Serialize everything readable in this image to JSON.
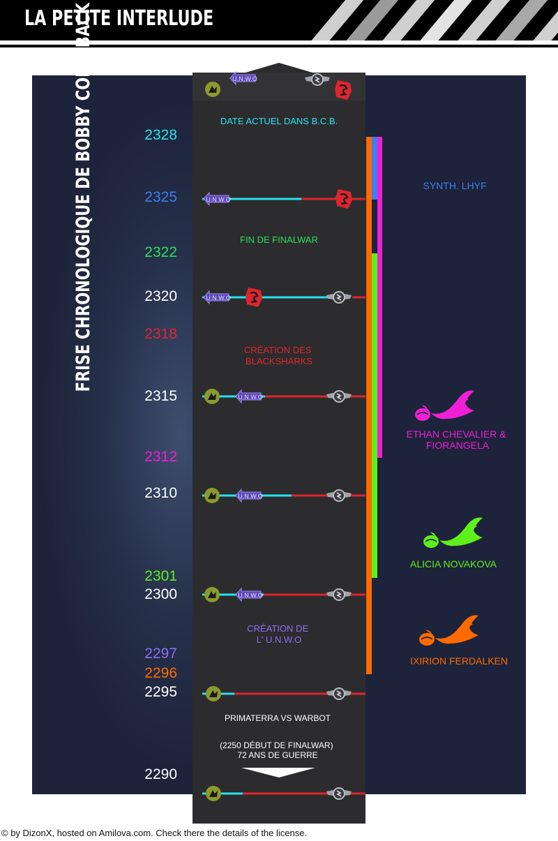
{
  "header": {
    "title": "LA PETITE INTERLUDE"
  },
  "vertical_title": "FRISE CHRONOLOGIQUE DE BOBBY COME BACK",
  "colors": {
    "cyan": "#22e5ef",
    "red": "#e0242e",
    "green": "#27e05a",
    "lime": "#5ef01a",
    "orange": "#ff6a00",
    "magenta": "#ef1fd6",
    "blue": "#3d7ef0",
    "purple": "#8b6ff5",
    "olive": "#8b9a2d",
    "grey": "#b9bcc3",
    "panel": "#23294a",
    "spine": "#2c2c2e"
  },
  "years": [
    {
      "label": "2328",
      "color": "#22e5ef"
    },
    {
      "label": "2325",
      "color": "#3d7ef0"
    },
    {
      "label": "2322",
      "color": "#27e05a"
    },
    {
      "label": "2320",
      "color": "#ffffff"
    },
    {
      "label": "2318",
      "color": "#e0242e"
    },
    {
      "label": "2315",
      "color": "#ffffff"
    },
    {
      "label": "2312",
      "color": "#ef1fd6"
    },
    {
      "label": "2310",
      "color": "#ffffff"
    },
    {
      "label": "2301",
      "color": "#5ef01a"
    },
    {
      "label": "2300",
      "color": "#ffffff"
    },
    {
      "label": "2297",
      "color": "#8b6ff5"
    },
    {
      "label": "2296",
      "color": "#ff6a00"
    },
    {
      "label": "2295",
      "color": "#ffffff"
    },
    {
      "label": "2290",
      "color": "#ffffff"
    }
  ],
  "events": {
    "date_actuel": "DATE ACTUEL DANS B.C.B.",
    "fin_finalwar": "FIN DE FINALWAR",
    "creation_blacksharks": "CRÉATION DES\nBLACKSHARKS",
    "creation_unwo": "CRÉATION DE\nL' U.N.W.O",
    "primaterra_vs_warbot": "PRIMATERRA VS WARBOT",
    "debut_finalwar": "(2250 DÉBUT DE FINALWAR)\n72 ANS DE GUERRE"
  },
  "characters": {
    "synth": "SYNTH. LHYF",
    "ethan": "ETHAN CHEVALIER &\nFIORANGELA",
    "alicia": "ALICIA NOVAKOVA",
    "ixirion": "IXIRION FERDALKEN"
  },
  "icons": {
    "unwo_text": "U.N.W.O",
    "factions": [
      "primaterra-icon",
      "unwo-icon",
      "warbot-icon",
      "blacksharks-icon"
    ],
    "births": [
      "stork-icon"
    ]
  },
  "footer": "© by DizonX, hosted on Amilova.com. Check there the details of the license."
}
